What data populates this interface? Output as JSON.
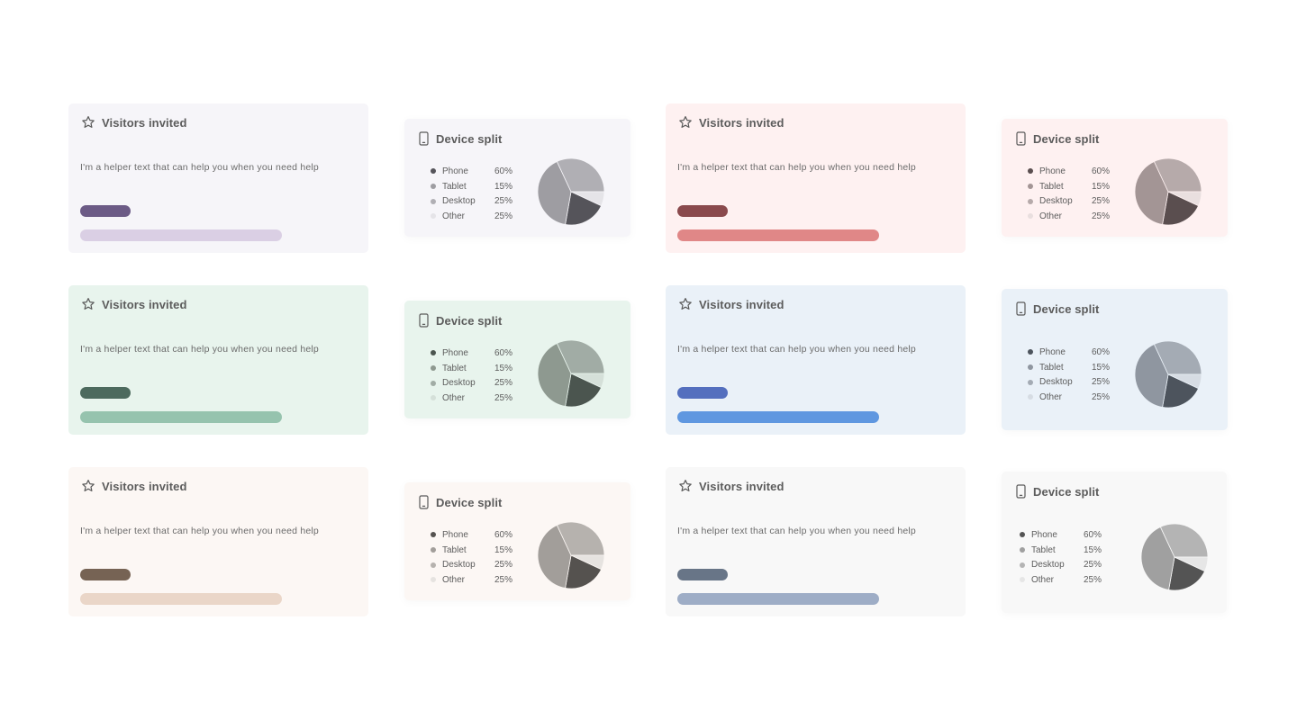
{
  "visitors_card": {
    "title": "Visitors invited",
    "helper": "I'm a helper text that can help you when you need help",
    "icon": "star-icon"
  },
  "device_card": {
    "title": "Device split",
    "icon": "phone-icon",
    "legend": [
      {
        "label": "Phone",
        "value": "60%"
      },
      {
        "label": "Tablet",
        "value": "15%"
      },
      {
        "label": "Desktop",
        "value": "25%"
      },
      {
        "label": "Other",
        "value": "25%"
      }
    ]
  },
  "themes": [
    {
      "name": "purple",
      "card_bg": "#f6f5f9",
      "bar_dark": "#6c5b86",
      "bar_light": "#dacfe4",
      "device_bg": "#f6f5f9",
      "slices": [
        "#55545a",
        "#9e9da2",
        "#b0afb4",
        "#e5e4e8"
      ]
    },
    {
      "name": "red",
      "card_bg": "#fef1f1",
      "bar_dark": "#8a4a4d",
      "bar_light": "#e08787",
      "device_bg": "#fef1f1",
      "slices": [
        "#5a4e4f",
        "#a39595",
        "#b6aaaa",
        "#e9dfdf"
      ]
    },
    {
      "name": "green",
      "card_bg": "#e8f4ed",
      "bar_dark": "#4d6a5e",
      "bar_light": "#96c3ae",
      "device_bg": "#e8f4ed",
      "slices": [
        "#4b554f",
        "#8e9990",
        "#a1aca5",
        "#d5e0d9"
      ]
    },
    {
      "name": "blue",
      "card_bg": "#eaf1f8",
      "bar_dark": "#546fbe",
      "bar_light": "#5f97e0",
      "device_bg": "#eaf1f8",
      "slices": [
        "#4d545d",
        "#8f96a0",
        "#a4abb4",
        "#d6dce3"
      ]
    },
    {
      "name": "beige",
      "card_bg": "#fcf7f4",
      "bar_dark": "#766354",
      "bar_light": "#ead6c8",
      "device_bg": "#fcf7f4",
      "slices": [
        "#55524f",
        "#a29e9a",
        "#b6b2ae",
        "#e6e3e0"
      ]
    },
    {
      "name": "gray",
      "card_bg": "#f8f8f8",
      "bar_dark": "#687587",
      "bar_light": "#9eadc6",
      "device_bg": "#f8f8f8",
      "slices": [
        "#545454",
        "#a0a0a0",
        "#b4b4b4",
        "#e6e6e6"
      ]
    }
  ]
}
